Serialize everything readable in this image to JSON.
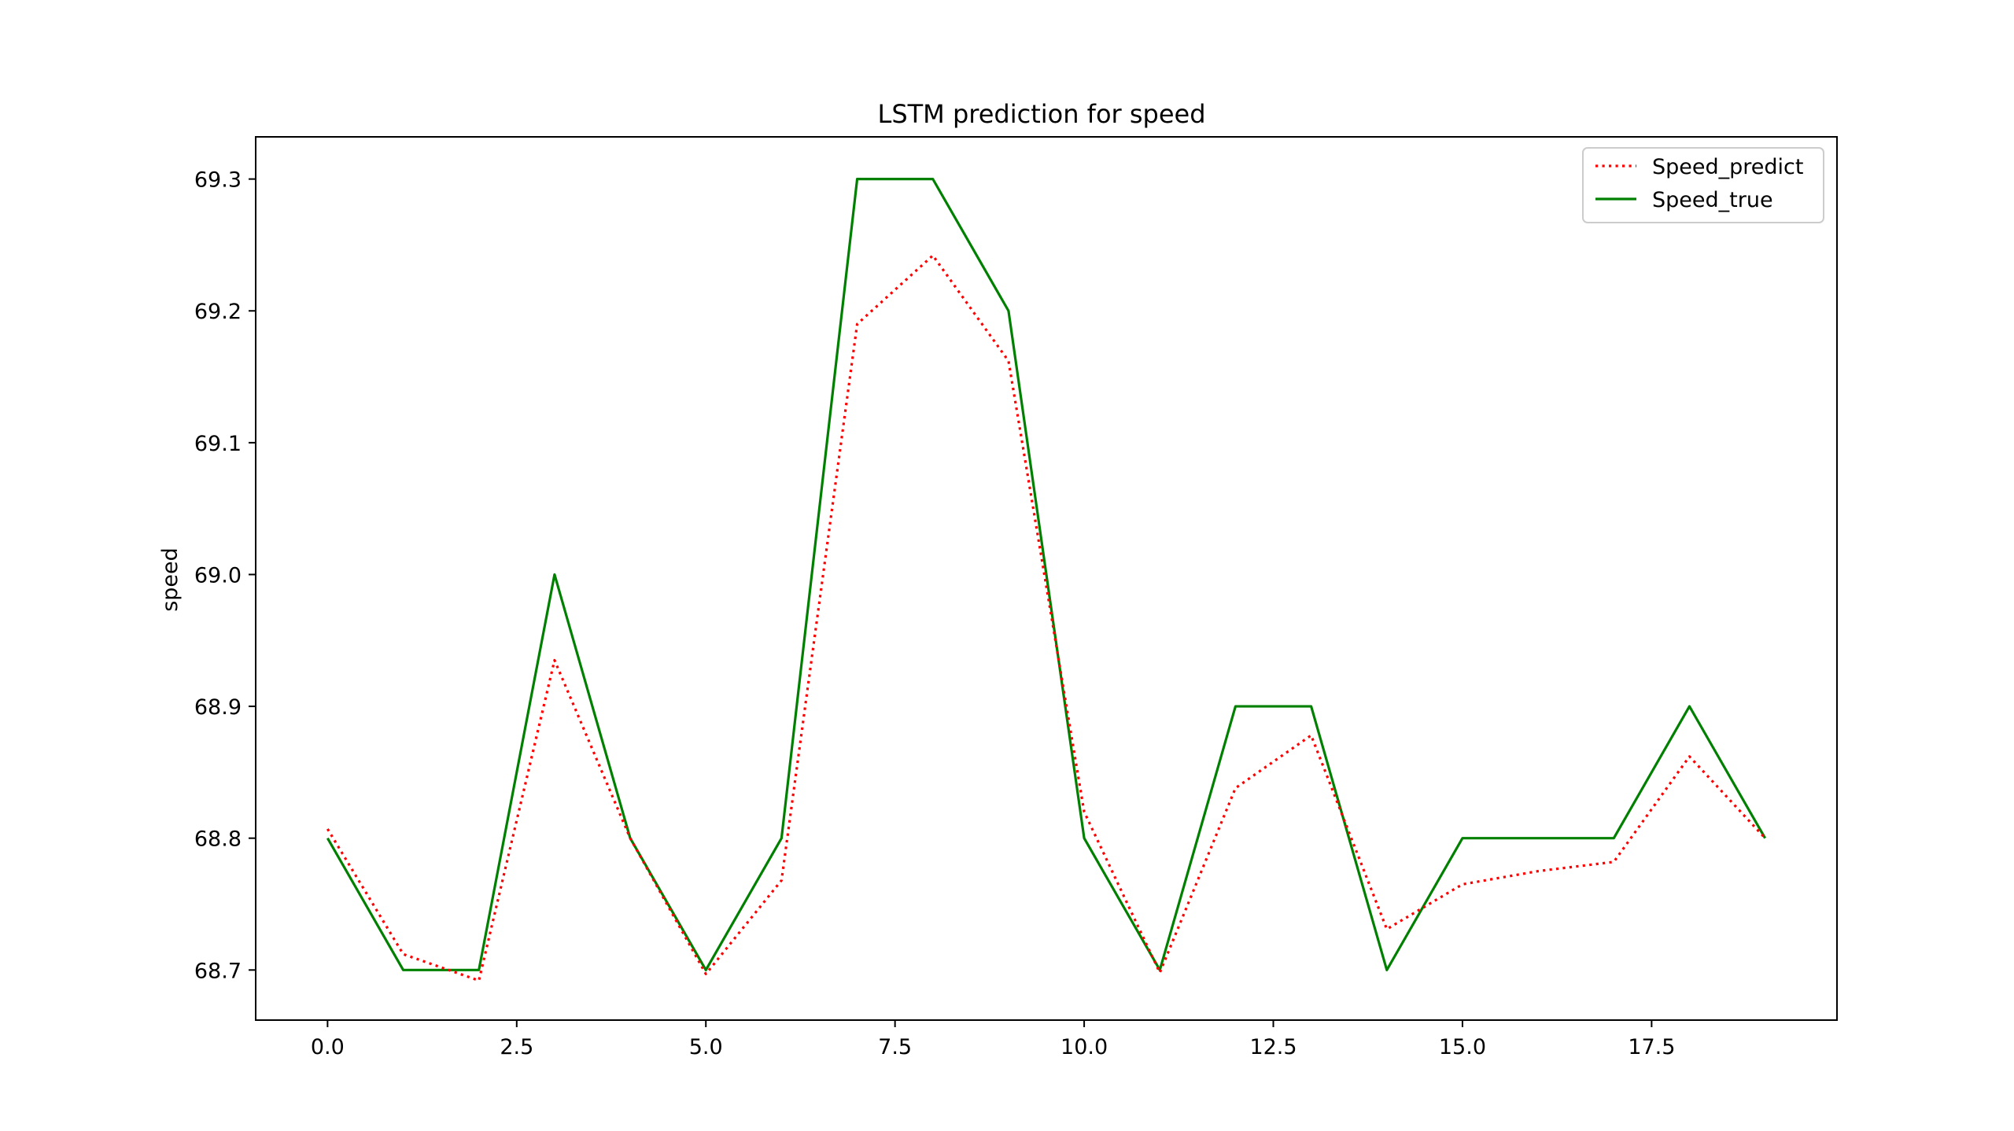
{
  "chart_data": {
    "type": "line",
    "title": "LSTM prediction for speed",
    "xlabel": "",
    "ylabel": "speed",
    "xlim": [
      -0.95,
      19.95
    ],
    "ylim": [
      68.662,
      69.332
    ],
    "xticks": [
      0.0,
      2.5,
      5.0,
      7.5,
      10.0,
      12.5,
      15.0,
      17.5
    ],
    "xtick_labels": [
      "0.0",
      "2.5",
      "5.0",
      "7.5",
      "10.0",
      "12.5",
      "15.0",
      "17.5"
    ],
    "yticks": [
      68.7,
      68.8,
      68.9,
      69.0,
      69.1,
      69.2,
      69.3
    ],
    "ytick_labels": [
      "68.7",
      "68.8",
      "68.9",
      "69.0",
      "69.1",
      "69.2",
      "69.3"
    ],
    "grid": false,
    "legend_position": "top-right",
    "x": [
      0,
      1,
      2,
      3,
      4,
      5,
      6,
      7,
      8,
      9,
      10,
      11,
      12,
      13,
      14,
      15,
      16,
      17,
      18,
      19
    ],
    "series": [
      {
        "name": "Speed_predict",
        "color": "#ff0000",
        "style": "dotted",
        "values": [
          68.807,
          68.712,
          68.692,
          68.935,
          68.8,
          68.697,
          68.768,
          69.19,
          69.242,
          69.162,
          68.82,
          68.698,
          68.838,
          68.878,
          68.731,
          68.765,
          68.775,
          68.782,
          68.862,
          68.8
        ]
      },
      {
        "name": "Speed_true",
        "color": "#008000",
        "style": "solid",
        "values": [
          68.8,
          68.7,
          68.7,
          69.0,
          68.8,
          68.7,
          68.8,
          69.3,
          69.3,
          69.2,
          68.8,
          68.7,
          68.9,
          68.9,
          68.7,
          68.8,
          68.8,
          68.8,
          68.9,
          68.8
        ]
      }
    ]
  }
}
